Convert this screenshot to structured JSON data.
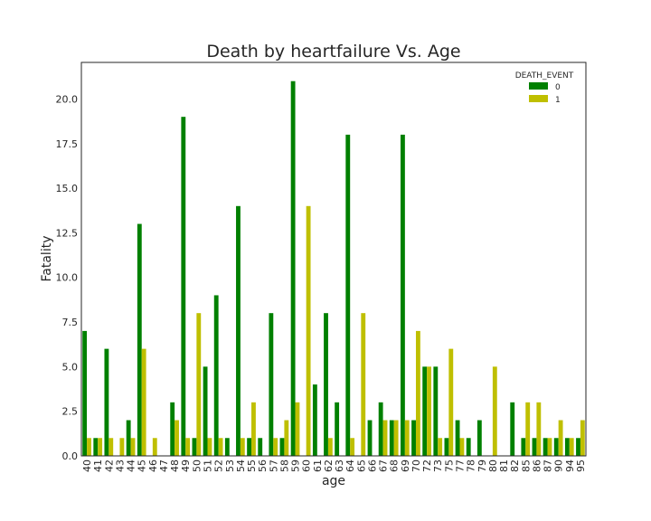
{
  "chart_data": {
    "type": "bar",
    "title": "Death by heartfailure Vs. Age",
    "xlabel": "age",
    "ylabel": "Fatality",
    "ylim": [
      0,
      22.05
    ],
    "yticks": [
      "0.0",
      "2.5",
      "5.0",
      "7.5",
      "10.0",
      "12.5",
      "15.0",
      "17.5",
      "20.0"
    ],
    "grid": false,
    "legend": {
      "title": "DEATH_EVENT",
      "placement": "top-right"
    },
    "categories": [
      "40",
      "41",
      "42",
      "43",
      "44",
      "45",
      "46",
      "47",
      "48",
      "49",
      "50",
      "51",
      "52",
      "53",
      "54",
      "55",
      "56",
      "57",
      "58",
      "59",
      "60",
      "61",
      "62",
      "63",
      "64",
      "65",
      "66",
      "67",
      "68",
      "69",
      "70",
      "72",
      "73",
      "75",
      "77",
      "78",
      "79",
      "80",
      "81",
      "82",
      "85",
      "86",
      "87",
      "90",
      "94",
      "95"
    ],
    "series": [
      {
        "name": "0",
        "color": "#008000",
        "values": [
          7,
          1,
          6,
          0,
          2,
          13,
          0,
          0,
          3,
          19,
          1,
          5,
          9,
          1,
          14,
          1,
          1,
          8,
          1,
          21,
          0,
          4,
          8,
          3,
          18,
          0,
          2,
          3,
          2,
          18,
          2,
          5,
          5,
          1,
          2,
          1,
          2,
          0,
          0,
          3,
          1,
          1,
          1,
          1,
          1,
          1
        ]
      },
      {
        "name": "1",
        "color": "#bfbf00",
        "values": [
          1,
          1,
          1,
          1,
          1,
          6,
          1,
          0,
          2,
          1,
          8,
          1,
          1,
          0,
          1,
          3,
          0,
          1,
          2,
          3,
          14,
          0,
          1,
          0,
          1,
          8,
          0,
          2,
          2,
          2,
          7,
          5,
          1,
          6,
          1,
          0,
          0,
          5,
          0,
          0,
          3,
          3,
          1,
          2,
          1,
          2
        ]
      }
    ]
  }
}
